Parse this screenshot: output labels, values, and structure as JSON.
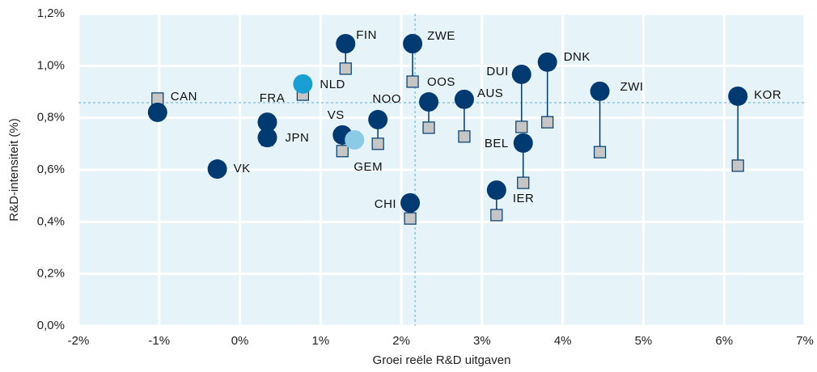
{
  "chart_data": {
    "type": "scatter",
    "x_label": "Groei reële R&D uitgaven",
    "y_label": "R&D-intensiteit (%)",
    "categories": [
      "CAN",
      "VK",
      "FRA",
      "JPN",
      "NLD",
      "VS",
      "GEM",
      "FIN",
      "NOO",
      "ZWE",
      "CHI",
      "OOS",
      "AUS",
      "IER",
      "DUI",
      "BEL",
      "DNK",
      "ZWI",
      "KOR"
    ],
    "x": [
      -1.02,
      -0.28,
      0.34,
      0.34,
      0.78,
      1.27,
      1.42,
      1.31,
      1.71,
      2.14,
      2.11,
      2.34,
      2.78,
      3.18,
      3.49,
      3.51,
      3.81,
      4.46,
      6.17
    ],
    "series": [
      {
        "values": [
          0.821,
          0.603,
          0.783,
          0.724,
          0.93,
          0.734,
          0.715,
          1.085,
          0.793,
          1.085,
          0.473,
          0.861,
          0.871,
          0.522,
          0.967,
          0.703,
          1.014,
          0.902,
          0.883
        ],
        "colors": [
          "#003a70",
          "#003a70",
          "#003a70",
          "#003a70",
          "#1a9fd4",
          "#003a70",
          "#8ccbe6",
          "#003a70",
          "#003a70",
          "#003a70",
          "#003a70",
          "#003a70",
          "#003a70",
          "#003a70",
          "#003a70",
          "#003a70",
          "#003a70",
          "#003a70",
          "#003a70"
        ]
      },
      {
        "values": [
          0.874,
          0.609,
          0.774,
          0.715,
          0.889,
          0.672,
          null,
          0.989,
          0.7,
          0.939,
          0.413,
          0.762,
          0.728,
          0.426,
          0.765,
          0.55,
          0.783,
          0.668,
          0.616
        ],
        "color": "#c6c6c6"
      }
    ],
    "reference_x": 2.17,
    "reference_y": 0.858,
    "xlim": [
      -2,
      7
    ],
    "ylim": [
      0,
      1.2
    ],
    "xticks": [
      {
        "value": -2,
        "label": "-2%"
      },
      {
        "value": -1,
        "label": "-1%"
      },
      {
        "value": 0,
        "label": "0%"
      },
      {
        "value": 1,
        "label": "1%"
      },
      {
        "value": 2,
        "label": "2%"
      },
      {
        "value": 3,
        "label": "3%"
      },
      {
        "value": 4,
        "label": "4%"
      },
      {
        "value": 5,
        "label": "5%"
      },
      {
        "value": 6,
        "label": "6%"
      },
      {
        "value": 7,
        "label": "7%"
      }
    ],
    "yticks": [
      {
        "value": 0,
        "label": "0,0%"
      },
      {
        "value": 0.2,
        "label": "0,2%"
      },
      {
        "value": 0.4,
        "label": "0,4%"
      },
      {
        "value": 0.6,
        "label": "0,6%"
      },
      {
        "value": 0.8,
        "label": "0,8%"
      },
      {
        "value": 1.0,
        "label": "1,0%"
      },
      {
        "value": 1.2,
        "label": "1,2%"
      }
    ],
    "grid": true
  }
}
